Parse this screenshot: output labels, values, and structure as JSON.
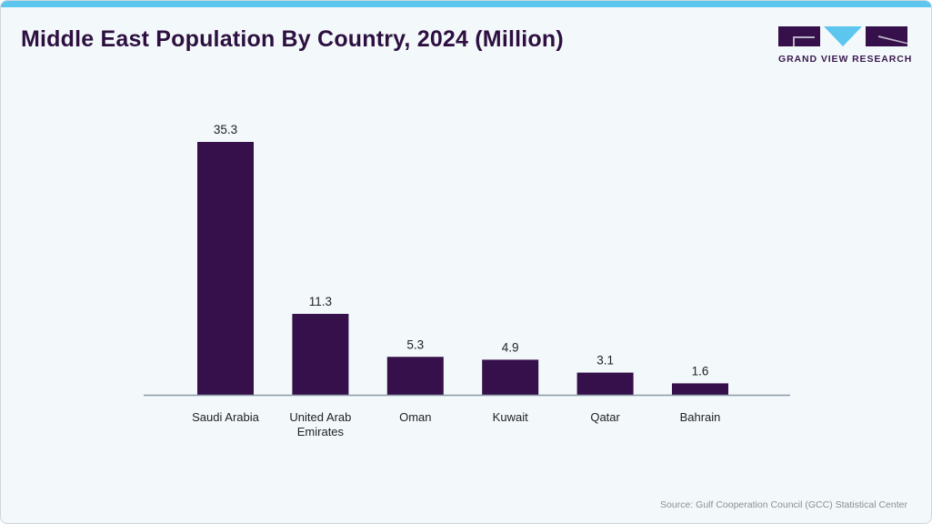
{
  "title": "Middle East Population By Country, 2024 (Million)",
  "logo": {
    "text": "GRAND VIEW RESEARCH",
    "colors": {
      "dark": "#35104a",
      "accent": "#5cc6ef"
    }
  },
  "source": "Source: Gulf Cooperation Council (GCC) Statistical Center",
  "colors": {
    "bar": "#35104a",
    "top_bar": "#5cc6ef",
    "background": "#f3f8fb"
  },
  "chart_data": {
    "type": "bar",
    "title": "Middle East Population By Country, 2024 (Million)",
    "categories": [
      "Saudi Arabia",
      "United Arab Emirates",
      "Oman",
      "Kuwait",
      "Qatar",
      "Bahrain"
    ],
    "category_lines": [
      [
        "Saudi Arabia"
      ],
      [
        "United Arab",
        "Emirates"
      ],
      [
        "Oman"
      ],
      [
        "Kuwait"
      ],
      [
        "Qatar"
      ],
      [
        "Bahrain"
      ]
    ],
    "values": [
      35.3,
      11.3,
      5.3,
      4.9,
      3.1,
      1.6
    ],
    "data_labels": [
      "35.3",
      "11.3",
      "5.3",
      "4.9",
      "3.1",
      "1.6"
    ],
    "xlabel": "",
    "ylabel": "",
    "ylim": [
      0,
      35.3
    ],
    "grid": false,
    "y_axis_visible": false
  }
}
